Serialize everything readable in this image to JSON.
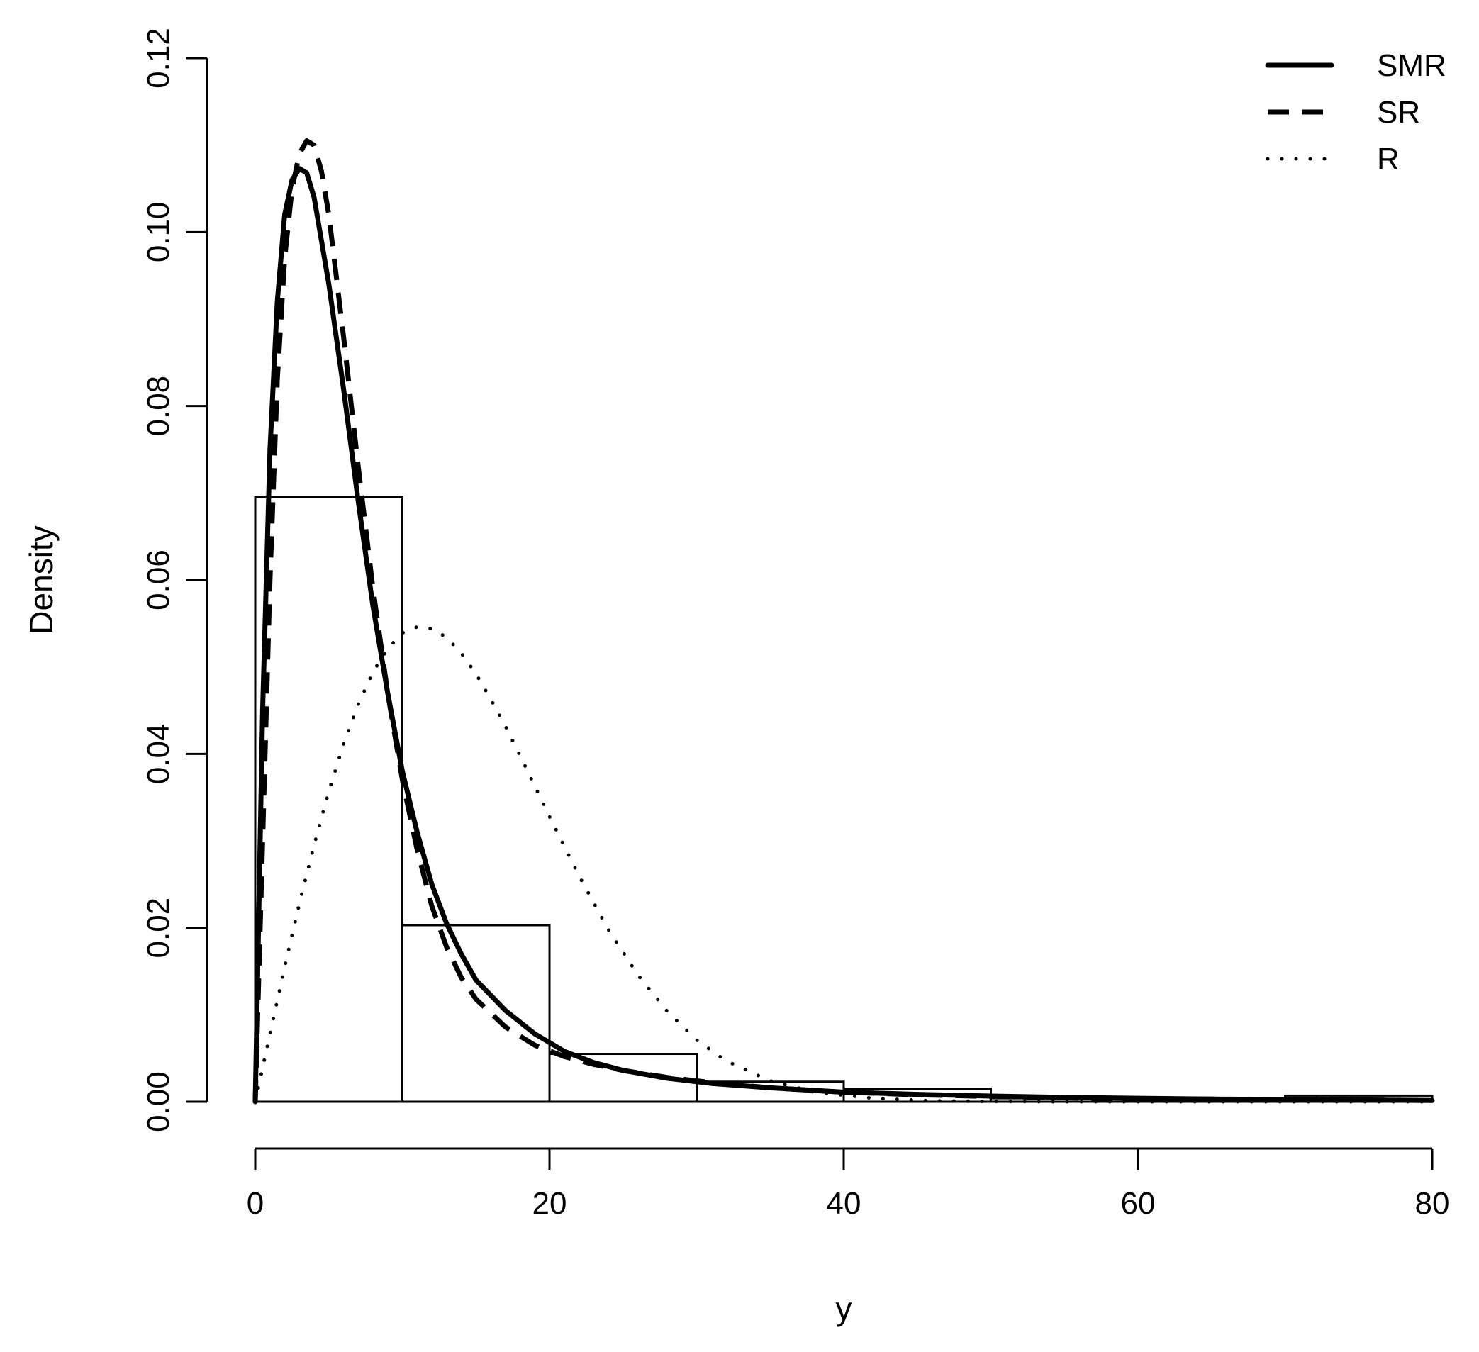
{
  "chart_data": {
    "type": "histogram",
    "xlabel": "y",
    "ylabel": "Density",
    "xlim": [
      0,
      80
    ],
    "ylim": [
      0,
      0.12
    ],
    "x_ticks": [
      0,
      20,
      40,
      60,
      80
    ],
    "x_tick_labels": [
      "0",
      "20",
      "40",
      "60",
      "80"
    ],
    "y_ticks": [
      0,
      0.02,
      0.04,
      0.06,
      0.08,
      0.1,
      0.12
    ],
    "y_tick_labels": [
      "0.00",
      "0.02",
      "0.04",
      "0.06",
      "0.08",
      "0.10",
      "0.12"
    ],
    "grid": false,
    "legend_position": "top-right",
    "histogram": {
      "bins": [
        {
          "x0": 0,
          "x1": 10,
          "density": 0.0695
        },
        {
          "x0": 10,
          "x1": 20,
          "density": 0.0203
        },
        {
          "x0": 20,
          "x1": 30,
          "density": 0.0055
        },
        {
          "x0": 30,
          "x1": 40,
          "density": 0.0023
        },
        {
          "x0": 40,
          "x1": 50,
          "density": 0.0015
        },
        {
          "x0": 50,
          "x1": 60,
          "density": 0.0004
        },
        {
          "x0": 60,
          "x1": 70,
          "density": 0.0002
        },
        {
          "x0": 70,
          "x1": 80,
          "density": 0.0007
        }
      ]
    },
    "series": [
      {
        "name": "SMR",
        "line_style": "solid",
        "x": [
          0,
          0.5,
          1,
          1.5,
          2,
          2.5,
          3,
          3.5,
          4,
          4.5,
          5,
          6,
          7,
          8,
          9,
          10,
          11,
          12,
          13,
          14,
          15,
          17,
          19,
          21,
          23,
          25,
          28,
          31,
          35,
          40,
          45,
          50,
          55,
          60,
          65,
          70,
          75,
          80
        ],
        "y": [
          0,
          0.045,
          0.075,
          0.092,
          0.102,
          0.106,
          0.1073,
          0.1068,
          0.104,
          0.099,
          0.094,
          0.082,
          0.069,
          0.057,
          0.047,
          0.038,
          0.031,
          0.025,
          0.0205,
          0.017,
          0.014,
          0.0105,
          0.0078,
          0.0058,
          0.0045,
          0.0036,
          0.0027,
          0.0021,
          0.0016,
          0.0011,
          0.00085,
          0.00065,
          0.0005,
          0.0004,
          0.0003,
          0.00025,
          0.0002,
          0.00015
        ]
      },
      {
        "name": "SR",
        "line_style": "dashed",
        "x": [
          0,
          0.5,
          1,
          1.5,
          2,
          2.5,
          3,
          3.5,
          4,
          4.5,
          5,
          6,
          7,
          8,
          9,
          10,
          11,
          12,
          13,
          14,
          15,
          17,
          19,
          21,
          23,
          25,
          28,
          31,
          35,
          40,
          45,
          50,
          55,
          60,
          65,
          70,
          75,
          80
        ],
        "y": [
          0,
          0.03,
          0.06,
          0.083,
          0.097,
          0.105,
          0.109,
          0.1105,
          0.11,
          0.107,
          0.102,
          0.088,
          0.073,
          0.059,
          0.047,
          0.037,
          0.029,
          0.0225,
          0.0178,
          0.0143,
          0.0118,
          0.0086,
          0.0065,
          0.0052,
          0.0043,
          0.0036,
          0.0028,
          0.0022,
          0.0016,
          0.0011,
          0.0008,
          0.0006,
          0.00045,
          0.00035,
          0.0003,
          0.00025,
          0.0002,
          0.00015
        ]
      },
      {
        "name": "R",
        "line_style": "dotted",
        "x": [
          0,
          1,
          2,
          3,
          4,
          5,
          6,
          7,
          8,
          9,
          10,
          11,
          12,
          13,
          14,
          15,
          16,
          17,
          18,
          19,
          20,
          22,
          24,
          26,
          28,
          30,
          32,
          35,
          38,
          42,
          46,
          50,
          55,
          60,
          70,
          80
        ],
        "y": [
          0,
          0.0078,
          0.0155,
          0.0228,
          0.0295,
          0.0357,
          0.0411,
          0.0457,
          0.0494,
          0.0521,
          0.0539,
          0.0546,
          0.0544,
          0.0534,
          0.0516,
          0.0492,
          0.0463,
          0.0432,
          0.0398,
          0.0363,
          0.0328,
          0.026,
          0.0198,
          0.0146,
          0.0104,
          0.0071,
          0.0047,
          0.0024,
          0.0011,
          0.0004,
          0.0001,
          3e-05,
          0,
          0,
          0,
          0
        ]
      }
    ]
  }
}
